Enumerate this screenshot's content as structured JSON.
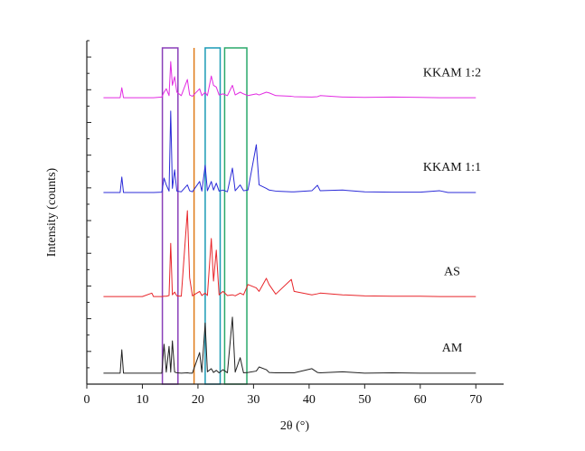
{
  "chart_data": {
    "type": "line",
    "x_label": "2θ (°)",
    "y_label": "Intensity (counts)",
    "xlim": [
      0,
      75
    ],
    "xticks": [
      0,
      10,
      20,
      30,
      40,
      50,
      60,
      70
    ],
    "ylim": [
      0,
      100
    ],
    "x": [
      3,
      6,
      6.3,
      6.6,
      10,
      11.7,
      12,
      13.5,
      13.9,
      14.3,
      14.8,
      15.1,
      15.4,
      15.8,
      16.2,
      17,
      18.1,
      18.5,
      19,
      20.3,
      20.7,
      21.3,
      21.7,
      22.4,
      22.8,
      23.3,
      23.8,
      24.5,
      25.3,
      26.2,
      26.7,
      27.6,
      28.2,
      29,
      30.5,
      31,
      32.3,
      32.8,
      34,
      36.8,
      37.3,
      40.5,
      41.5,
      42,
      46,
      50,
      55,
      60,
      63.5,
      65,
      70
    ],
    "series": [
      {
        "name": "AM",
        "color": "#222222",
        "values": [
          3.2,
          3.2,
          10,
          3.2,
          3.2,
          3.2,
          3.2,
          3.2,
          11.6,
          3.5,
          11,
          3.5,
          12.6,
          3.5,
          3.3,
          3.2,
          3.3,
          3.2,
          3.2,
          9.2,
          3.5,
          17.8,
          3.6,
          4.5,
          3.4,
          4,
          3.3,
          4.2,
          3.3,
          19.5,
          3.5,
          7.7,
          3.3,
          3.4,
          3.8,
          5,
          4.2,
          3.4,
          3.3,
          3.3,
          3.3,
          4.5,
          3.4,
          3.3,
          3.6,
          3.2,
          3.3,
          3.2,
          3.2,
          3.2,
          3.2
        ]
      },
      {
        "name": "AS",
        "color": "#e8262b",
        "values": [
          25.5,
          25.5,
          25.5,
          25.5,
          25.5,
          26.5,
          25.5,
          25.5,
          25.6,
          25.6,
          25.8,
          41,
          26,
          26.8,
          25.7,
          25.6,
          50.5,
          31,
          25.7,
          27,
          25.8,
          26.5,
          25.8,
          42.4,
          30,
          39,
          26,
          27,
          25.8,
          26,
          25.7,
          26.5,
          26,
          29,
          28,
          27,
          30.8,
          29,
          26.2,
          30.5,
          27,
          26,
          26.3,
          26.5,
          26,
          25.7,
          25.6,
          25.6,
          25.5,
          25.5,
          25.5
        ]
      },
      {
        "name": "KKAM 1:1",
        "color": "#2b2bd8",
        "values": [
          55.8,
          55.8,
          60.3,
          55.8,
          55.8,
          55.8,
          55.8,
          55.9,
          60,
          58,
          56.2,
          79.5,
          57,
          62.4,
          56.2,
          56,
          58,
          56.3,
          56,
          59,
          56.2,
          63.7,
          56.3,
          59,
          56.5,
          58.5,
          56.2,
          56.5,
          56,
          62.9,
          56.3,
          58,
          56.3,
          56.5,
          69.7,
          58,
          57,
          56.5,
          56.2,
          56,
          56,
          56.3,
          57.9,
          56.3,
          56.5,
          56,
          55.9,
          55.9,
          56.3,
          55.8,
          55.8
        ]
      },
      {
        "name": "KKAM 1:2",
        "color": "#e22be2",
        "values": [
          83.4,
          83.4,
          86.3,
          83.4,
          83.4,
          83.4,
          83.4,
          83.6,
          85,
          86,
          84,
          93.9,
          87,
          89.5,
          85,
          84,
          88.7,
          84.2,
          83.8,
          86,
          84,
          85,
          84,
          89.7,
          87,
          86.5,
          84.2,
          84.5,
          84,
          87,
          84.2,
          85,
          84.5,
          84,
          84.5,
          84.2,
          85,
          84.8,
          84,
          83.8,
          83.7,
          83.6,
          83.7,
          84,
          83.6,
          83.5,
          83.6,
          83.5,
          83.4,
          83.4,
          83.4
        ]
      }
    ],
    "highlight_boxes": [
      {
        "color": "#8a3fb8",
        "x": [
          13.6,
          16.4
        ]
      },
      {
        "color": "#e07b1a",
        "x": [
          19.3
        ]
      },
      {
        "color": "#1a9ab5",
        "x": [
          21.3,
          24.0
        ]
      },
      {
        "color": "#2aa86a",
        "x": [
          24.8,
          28.8
        ]
      }
    ]
  }
}
